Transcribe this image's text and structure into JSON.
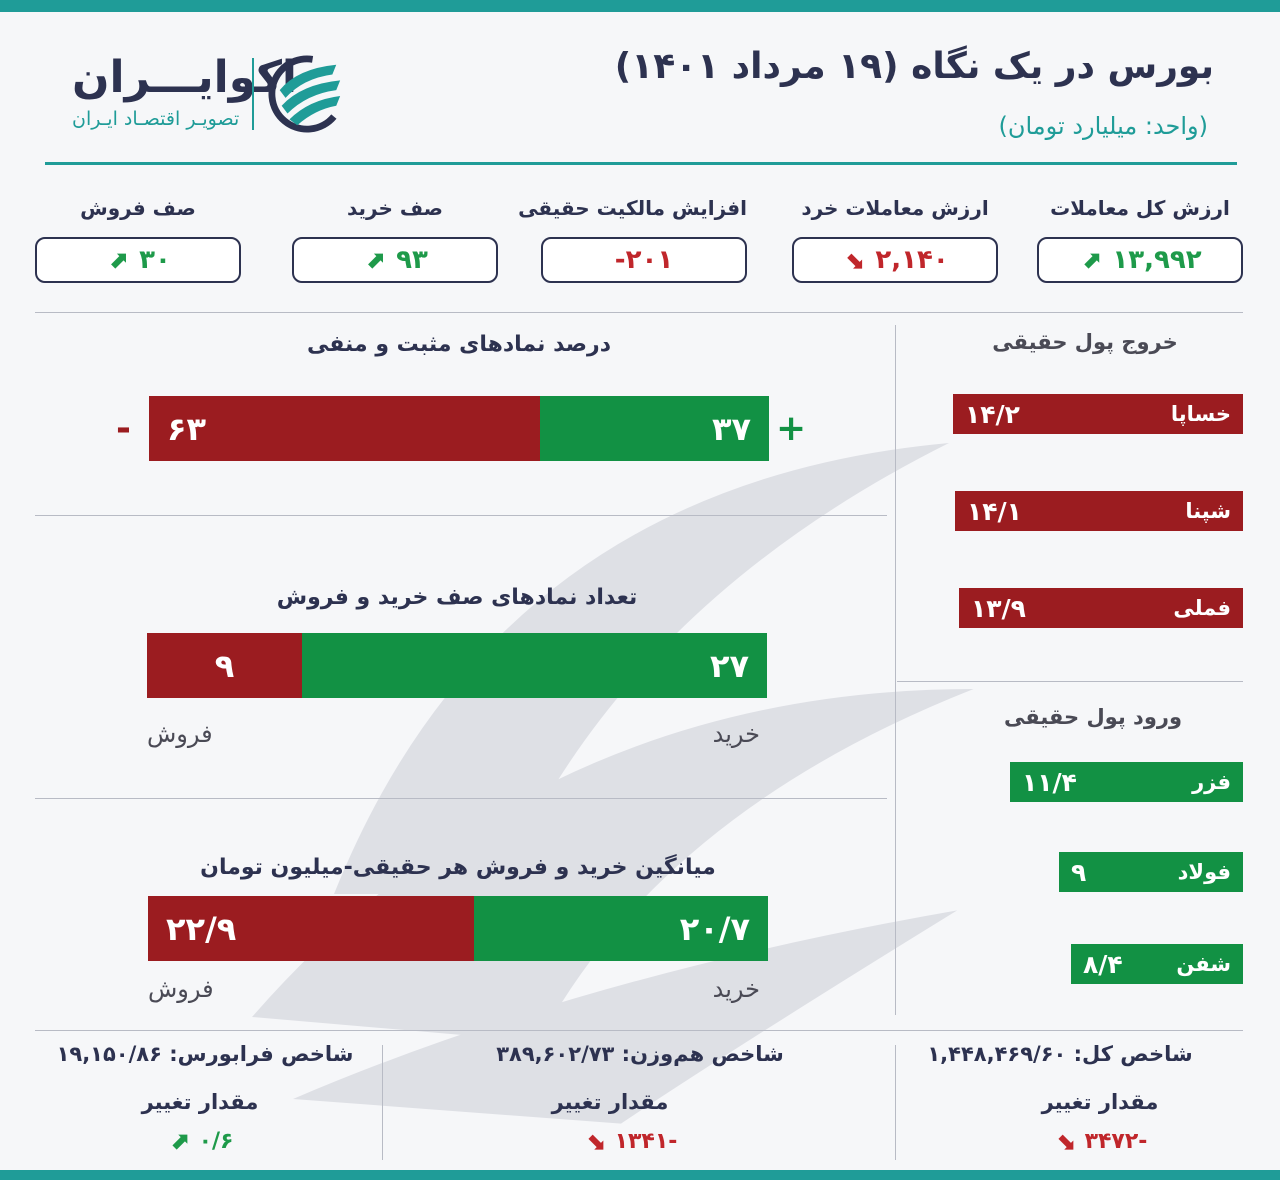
{
  "header": {
    "title": "بورس در یک نگاه (۱۹ مرداد ۱۴۰۱)",
    "unit": "(واحد: میلیارد تومان)",
    "brand_name": "اکوایـــران",
    "brand_sub": "تصویـر اقتصـاد ایـران",
    "accent_color": "#1f9c98"
  },
  "stats": [
    {
      "label": "ارزش کل معاملات",
      "value": "۱۳,۹۹۲",
      "icon": "arrow-up-icon",
      "trend": "up"
    },
    {
      "label": "ارزش معاملات خرد",
      "value": "۲,۱۴۰",
      "icon": "arrow-down-icon",
      "trend": "down"
    },
    {
      "label": "افزایش مالکیت حقیقی",
      "value": "-۲۰۱",
      "icon": "",
      "trend": "none"
    },
    {
      "label": "صف خرید",
      "value": "۹۳",
      "icon": "arrow-up-icon",
      "trend": "up"
    },
    {
      "label": "صف فروش",
      "value": "۳۰",
      "icon": "arrow-up-icon",
      "trend": "up"
    }
  ],
  "percent_section": {
    "title": "درصد نمادهای مثبت و منفی",
    "positive_label": "۳۷",
    "negative_label": "۶۳",
    "positive_share": 37,
    "negative_share": 63,
    "plus_sign": "+",
    "minus_sign": "-"
  },
  "queue_section": {
    "title": "تعداد نمادهای صف خرید و فروش",
    "buy_label": "۲۷",
    "sell_label": "۹",
    "buy_count": 27,
    "sell_count": 9,
    "buy_text": "خرید",
    "sell_text": "فروش"
  },
  "avg_section": {
    "title": "میانگین خرید و فروش هر حقیقی-میلیون تومان",
    "buy_label": "۲۰/۷",
    "sell_label": "۲۲/۹",
    "buy_value": 20.7,
    "sell_value": 22.9,
    "buy_text": "خرید",
    "sell_text": "فروش"
  },
  "outflow": {
    "title": "خروج پول حقیقی",
    "items": [
      {
        "name": "خساپا",
        "value": "۱۴/۲",
        "amount": 14.2
      },
      {
        "name": "شپنا",
        "value": "۱۴/۱",
        "amount": 14.1
      },
      {
        "name": "فملی",
        "value": "۱۳/۹",
        "amount": 13.9
      }
    ]
  },
  "inflow": {
    "title": "ورود پول حقیقی",
    "items": [
      {
        "name": "فزر",
        "value": "۱۱/۴",
        "amount": 11.4
      },
      {
        "name": "فولاد",
        "value": "۹",
        "amount": 9
      },
      {
        "name": "شفن",
        "value": "۸/۴",
        "amount": 8.4
      }
    ]
  },
  "indices": [
    {
      "label": "شاخص کل: ۱,۴۴۸,۴۶۹/۶۰",
      "change_label": "مقدار تغییر",
      "change": "-۳۴۷۲",
      "trend": "down"
    },
    {
      "label": "شاخص هم‌وزن: ۳۸۹,۶۰۲/۷۳",
      "change_label": "مقدار تغییر",
      "change": "-۱۳۴۱",
      "trend": "down"
    },
    {
      "label": "شاخص فرابورس: ۱۹,۱۵۰/۸۶",
      "change_label": "مقدار تغییر",
      "change": "۰/۶",
      "trend": "up"
    }
  ],
  "colors": {
    "green": "#129144",
    "red": "#9b1c20",
    "up_arrow": "#1e9a4a",
    "down_arrow": "#c0262b"
  }
}
